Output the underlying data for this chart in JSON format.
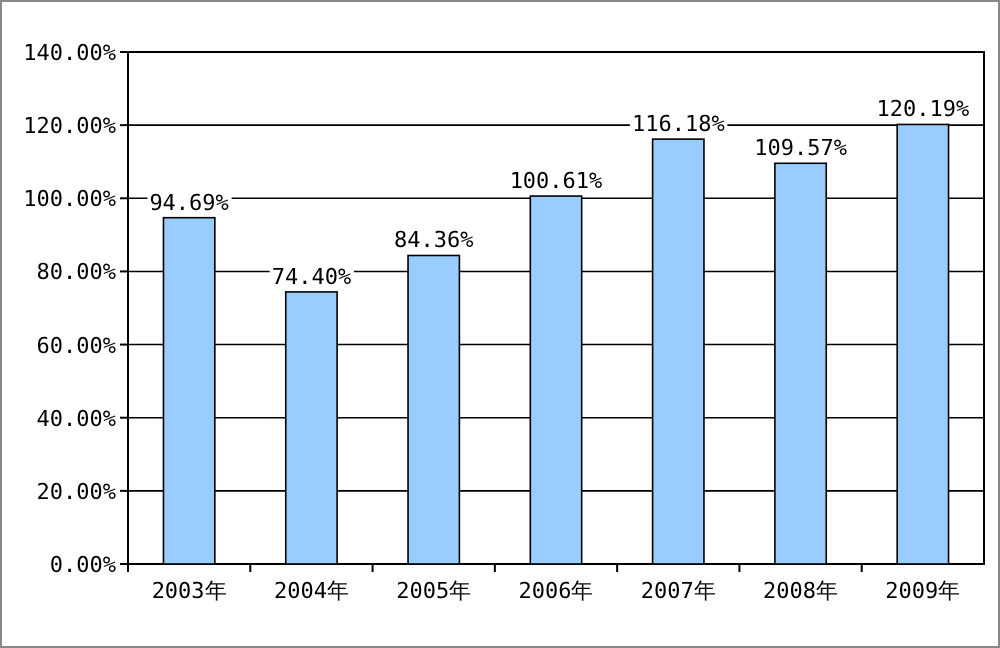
{
  "chart_data": {
    "type": "bar",
    "categories": [
      "2003年",
      "2004年",
      "2005年",
      "2006年",
      "2007年",
      "2008年",
      "2009年"
    ],
    "values": [
      94.69,
      74.4,
      84.36,
      100.61,
      116.18,
      109.57,
      120.19
    ],
    "value_labels": [
      "94.69%",
      "74.40%",
      "84.36%",
      "100.61%",
      "116.18%",
      "109.57%",
      "120.19%"
    ],
    "color": "#99ccff",
    "ylim": [
      0,
      140
    ],
    "yticks": [
      {
        "value": 0,
        "label": "0.00%"
      },
      {
        "value": 20,
        "label": "20.00%"
      },
      {
        "value": 40,
        "label": "40.00%"
      },
      {
        "value": 60,
        "label": "60.00%"
      },
      {
        "value": 80,
        "label": "80.00%"
      },
      {
        "value": 100,
        "label": "100.00%"
      },
      {
        "value": 120,
        "label": "120.00%"
      },
      {
        "value": 140,
        "label": "140.00%"
      }
    ],
    "grid": "y"
  }
}
